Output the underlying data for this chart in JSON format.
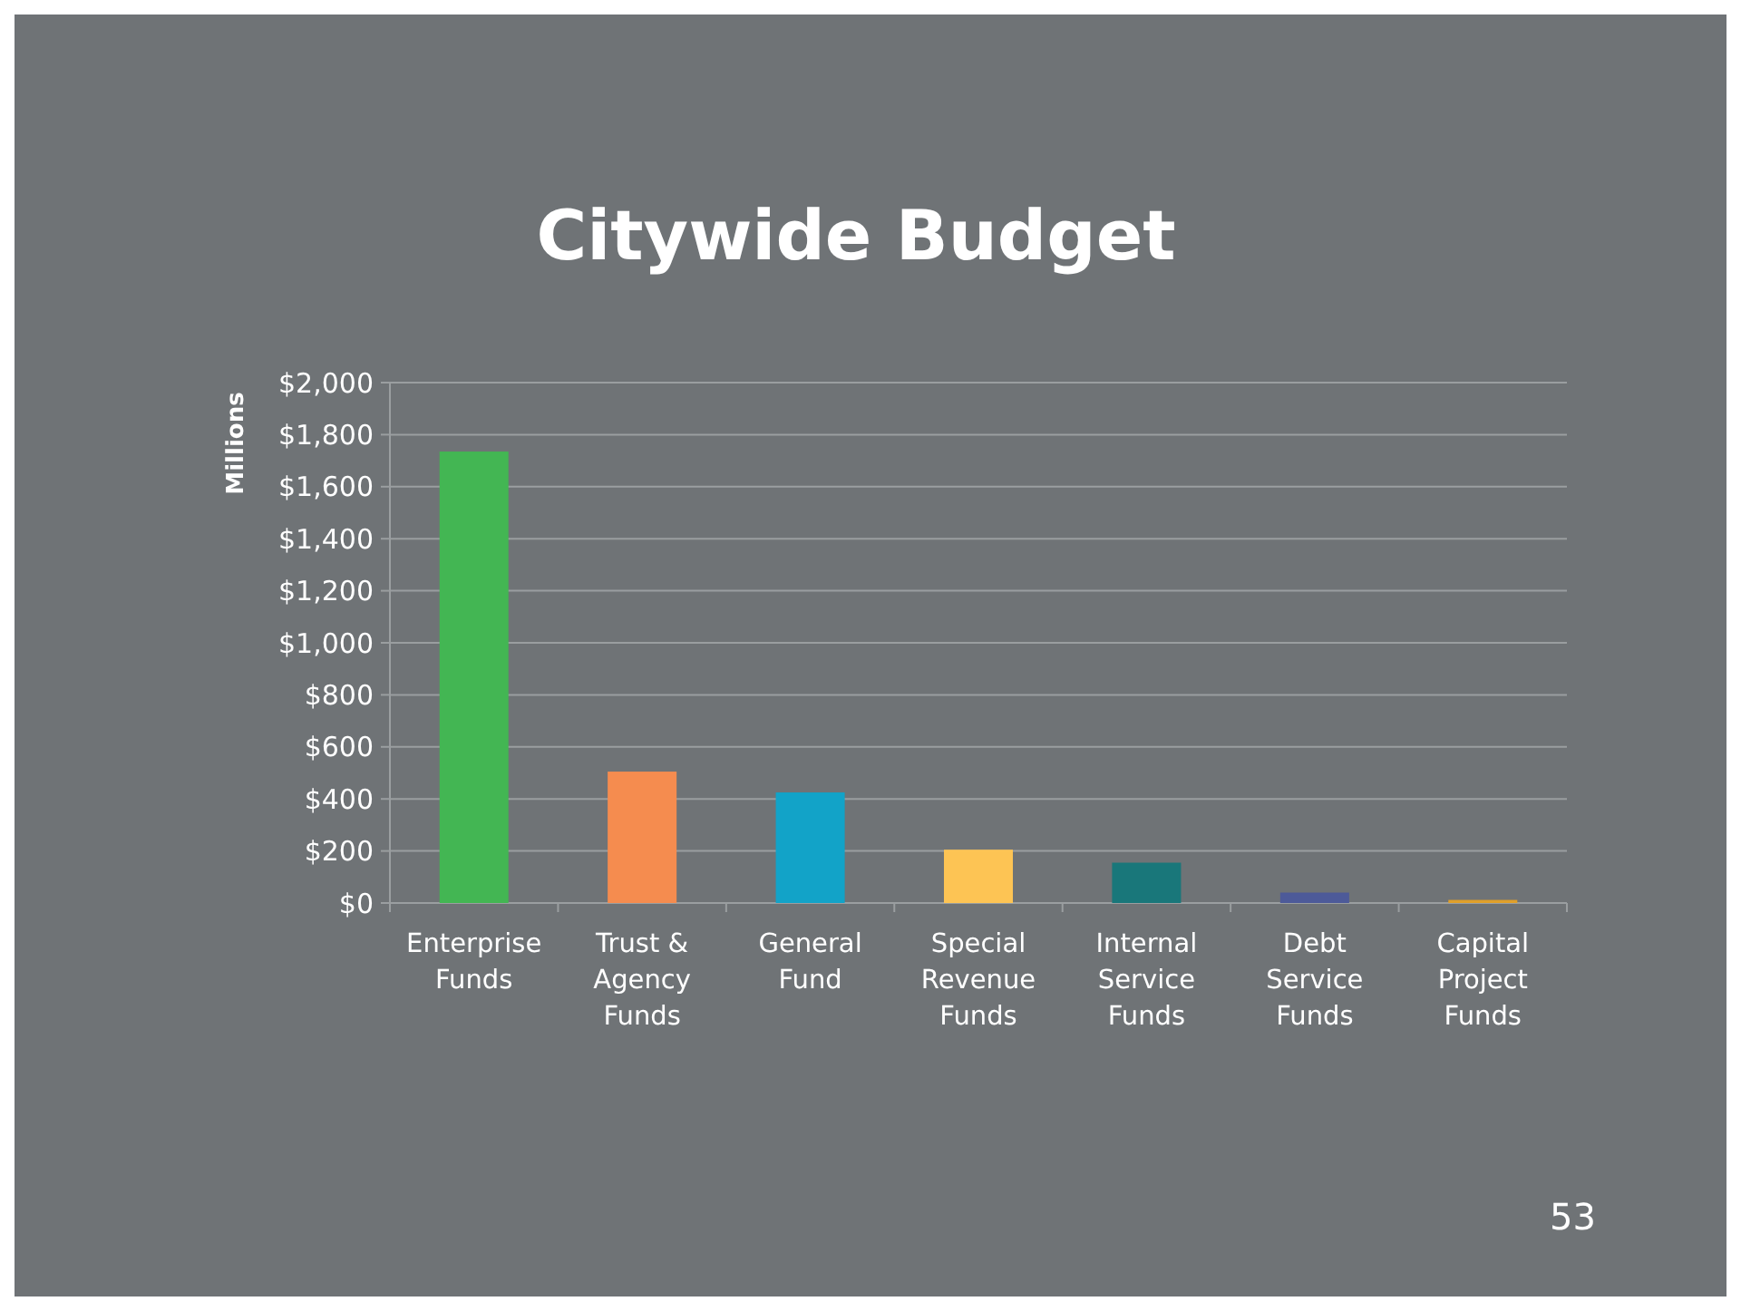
{
  "chart_data": {
    "type": "bar",
    "title": "Citywide Budget",
    "ylabel": "Millions",
    "categories": [
      "Enterprise Funds",
      "Trust & Agency Funds",
      "General Fund",
      "Special Revenue Funds",
      "Internal Service Funds",
      "Debt Service Funds",
      "Capital Project Funds"
    ],
    "values": [
      1735,
      505,
      425,
      205,
      155,
      40,
      12
    ],
    "colors": [
      "#43b653",
      "#f58c4f",
      "#12a3c8",
      "#fdc454",
      "#19777a",
      "#4d5a99",
      "#e0a02a"
    ],
    "ylim": [
      0,
      2000
    ],
    "yticks": [
      {
        "value": 0,
        "label": "$0"
      },
      {
        "value": 200,
        "label": "$200"
      },
      {
        "value": 400,
        "label": "$400"
      },
      {
        "value": 600,
        "label": "$600"
      },
      {
        "value": 800,
        "label": "$800"
      },
      {
        "value": 1000,
        "label": "$1,000"
      },
      {
        "value": 1200,
        "label": "$1,200"
      },
      {
        "value": 1400,
        "label": "$1,400"
      },
      {
        "value": 1600,
        "label": "$1,600"
      },
      {
        "value": 1800,
        "label": "$1,800"
      },
      {
        "value": 2000,
        "label": "$2,000"
      }
    ],
    "grid": "y",
    "annotations": [
      "53"
    ]
  }
}
